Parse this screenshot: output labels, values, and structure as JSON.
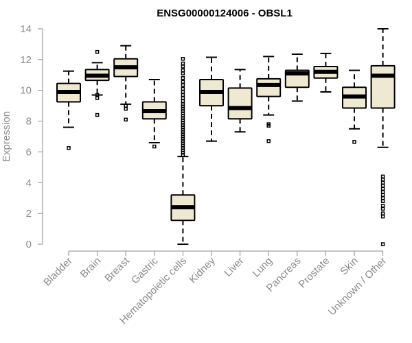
{
  "chart_data": {
    "type": "box",
    "title": "ENSG00000124006 - OBSL1",
    "ylabel": "Expression",
    "xlabel": "",
    "ylim": [
      0,
      14
    ],
    "yticks": [
      0,
      2,
      4,
      6,
      8,
      10,
      12,
      14
    ],
    "grid": false,
    "colors": {
      "box_fill": "#efe9d2",
      "stroke": "#000000",
      "axis": "#8a8a8a"
    },
    "categories": [
      "Bladder",
      "Brain",
      "Breast",
      "Gastric",
      "Hematopoietic cells",
      "Kidney",
      "Liver",
      "Lung",
      "Pancreas",
      "Prostate",
      "Skin",
      "Unknown / Other"
    ],
    "boxes": [
      {
        "whisker_low": 7.6,
        "q1": 9.25,
        "median": 9.9,
        "q3": 10.45,
        "whisker_high": 11.25,
        "outliers": [
          6.25
        ]
      },
      {
        "whisker_low": 9.7,
        "q1": 10.65,
        "median": 10.95,
        "q3": 11.35,
        "whisker_high": 11.8,
        "outliers": [
          12.5,
          9.7,
          9.5,
          8.4
        ]
      },
      {
        "whisker_low": 9.1,
        "q1": 10.9,
        "median": 11.5,
        "q3": 12.05,
        "whisker_high": 12.9,
        "outliers": [
          9.0,
          8.8,
          8.1
        ]
      },
      {
        "whisker_low": 6.6,
        "q1": 8.15,
        "median": 8.65,
        "q3": 9.25,
        "whisker_high": 10.7,
        "outliers": [
          6.35
        ]
      },
      {
        "whisker_low": 0.0,
        "q1": 1.55,
        "median": 2.4,
        "q3": 3.2,
        "whisker_high": 5.7,
        "outliers": [
          5.8,
          5.95,
          6.1,
          6.25,
          6.4,
          6.55,
          6.7,
          6.85,
          7.0,
          7.15,
          7.3,
          7.45,
          7.6,
          7.75,
          7.9,
          8.05,
          8.2,
          8.35,
          8.5,
          8.65,
          8.8,
          8.95,
          9.1,
          9.3,
          9.5,
          9.7,
          9.9,
          10.1,
          10.35,
          10.55,
          10.8,
          11.1,
          11.3,
          11.55,
          11.75,
          12.05
        ]
      },
      {
        "whisker_low": 6.7,
        "q1": 9.0,
        "median": 9.9,
        "q3": 10.7,
        "whisker_high": 12.15,
        "outliers": []
      },
      {
        "whisker_low": 7.3,
        "q1": 8.15,
        "median": 8.85,
        "q3": 10.15,
        "whisker_high": 11.35,
        "outliers": []
      },
      {
        "whisker_low": 8.4,
        "q1": 9.6,
        "median": 10.35,
        "q3": 10.75,
        "whisker_high": 12.2,
        "outliers": [
          7.8,
          7.7,
          6.7
        ]
      },
      {
        "whisker_low": 9.3,
        "q1": 10.2,
        "median": 11.1,
        "q3": 11.3,
        "whisker_high": 12.35,
        "outliers": []
      },
      {
        "whisker_low": 9.9,
        "q1": 10.8,
        "median": 11.2,
        "q3": 11.55,
        "whisker_high": 12.4,
        "outliers": []
      },
      {
        "whisker_low": 7.5,
        "q1": 8.85,
        "median": 9.6,
        "q3": 10.2,
        "whisker_high": 11.3,
        "outliers": [
          6.65
        ]
      },
      {
        "whisker_low": 6.3,
        "q1": 8.85,
        "median": 10.95,
        "q3": 11.6,
        "whisker_high": 14.0,
        "outliers": [
          4.4,
          4.2,
          4.0,
          3.8,
          3.6,
          3.4,
          3.2,
          3.0,
          2.8,
          2.5,
          2.3,
          2.0,
          1.8,
          0.0
        ]
      }
    ]
  }
}
